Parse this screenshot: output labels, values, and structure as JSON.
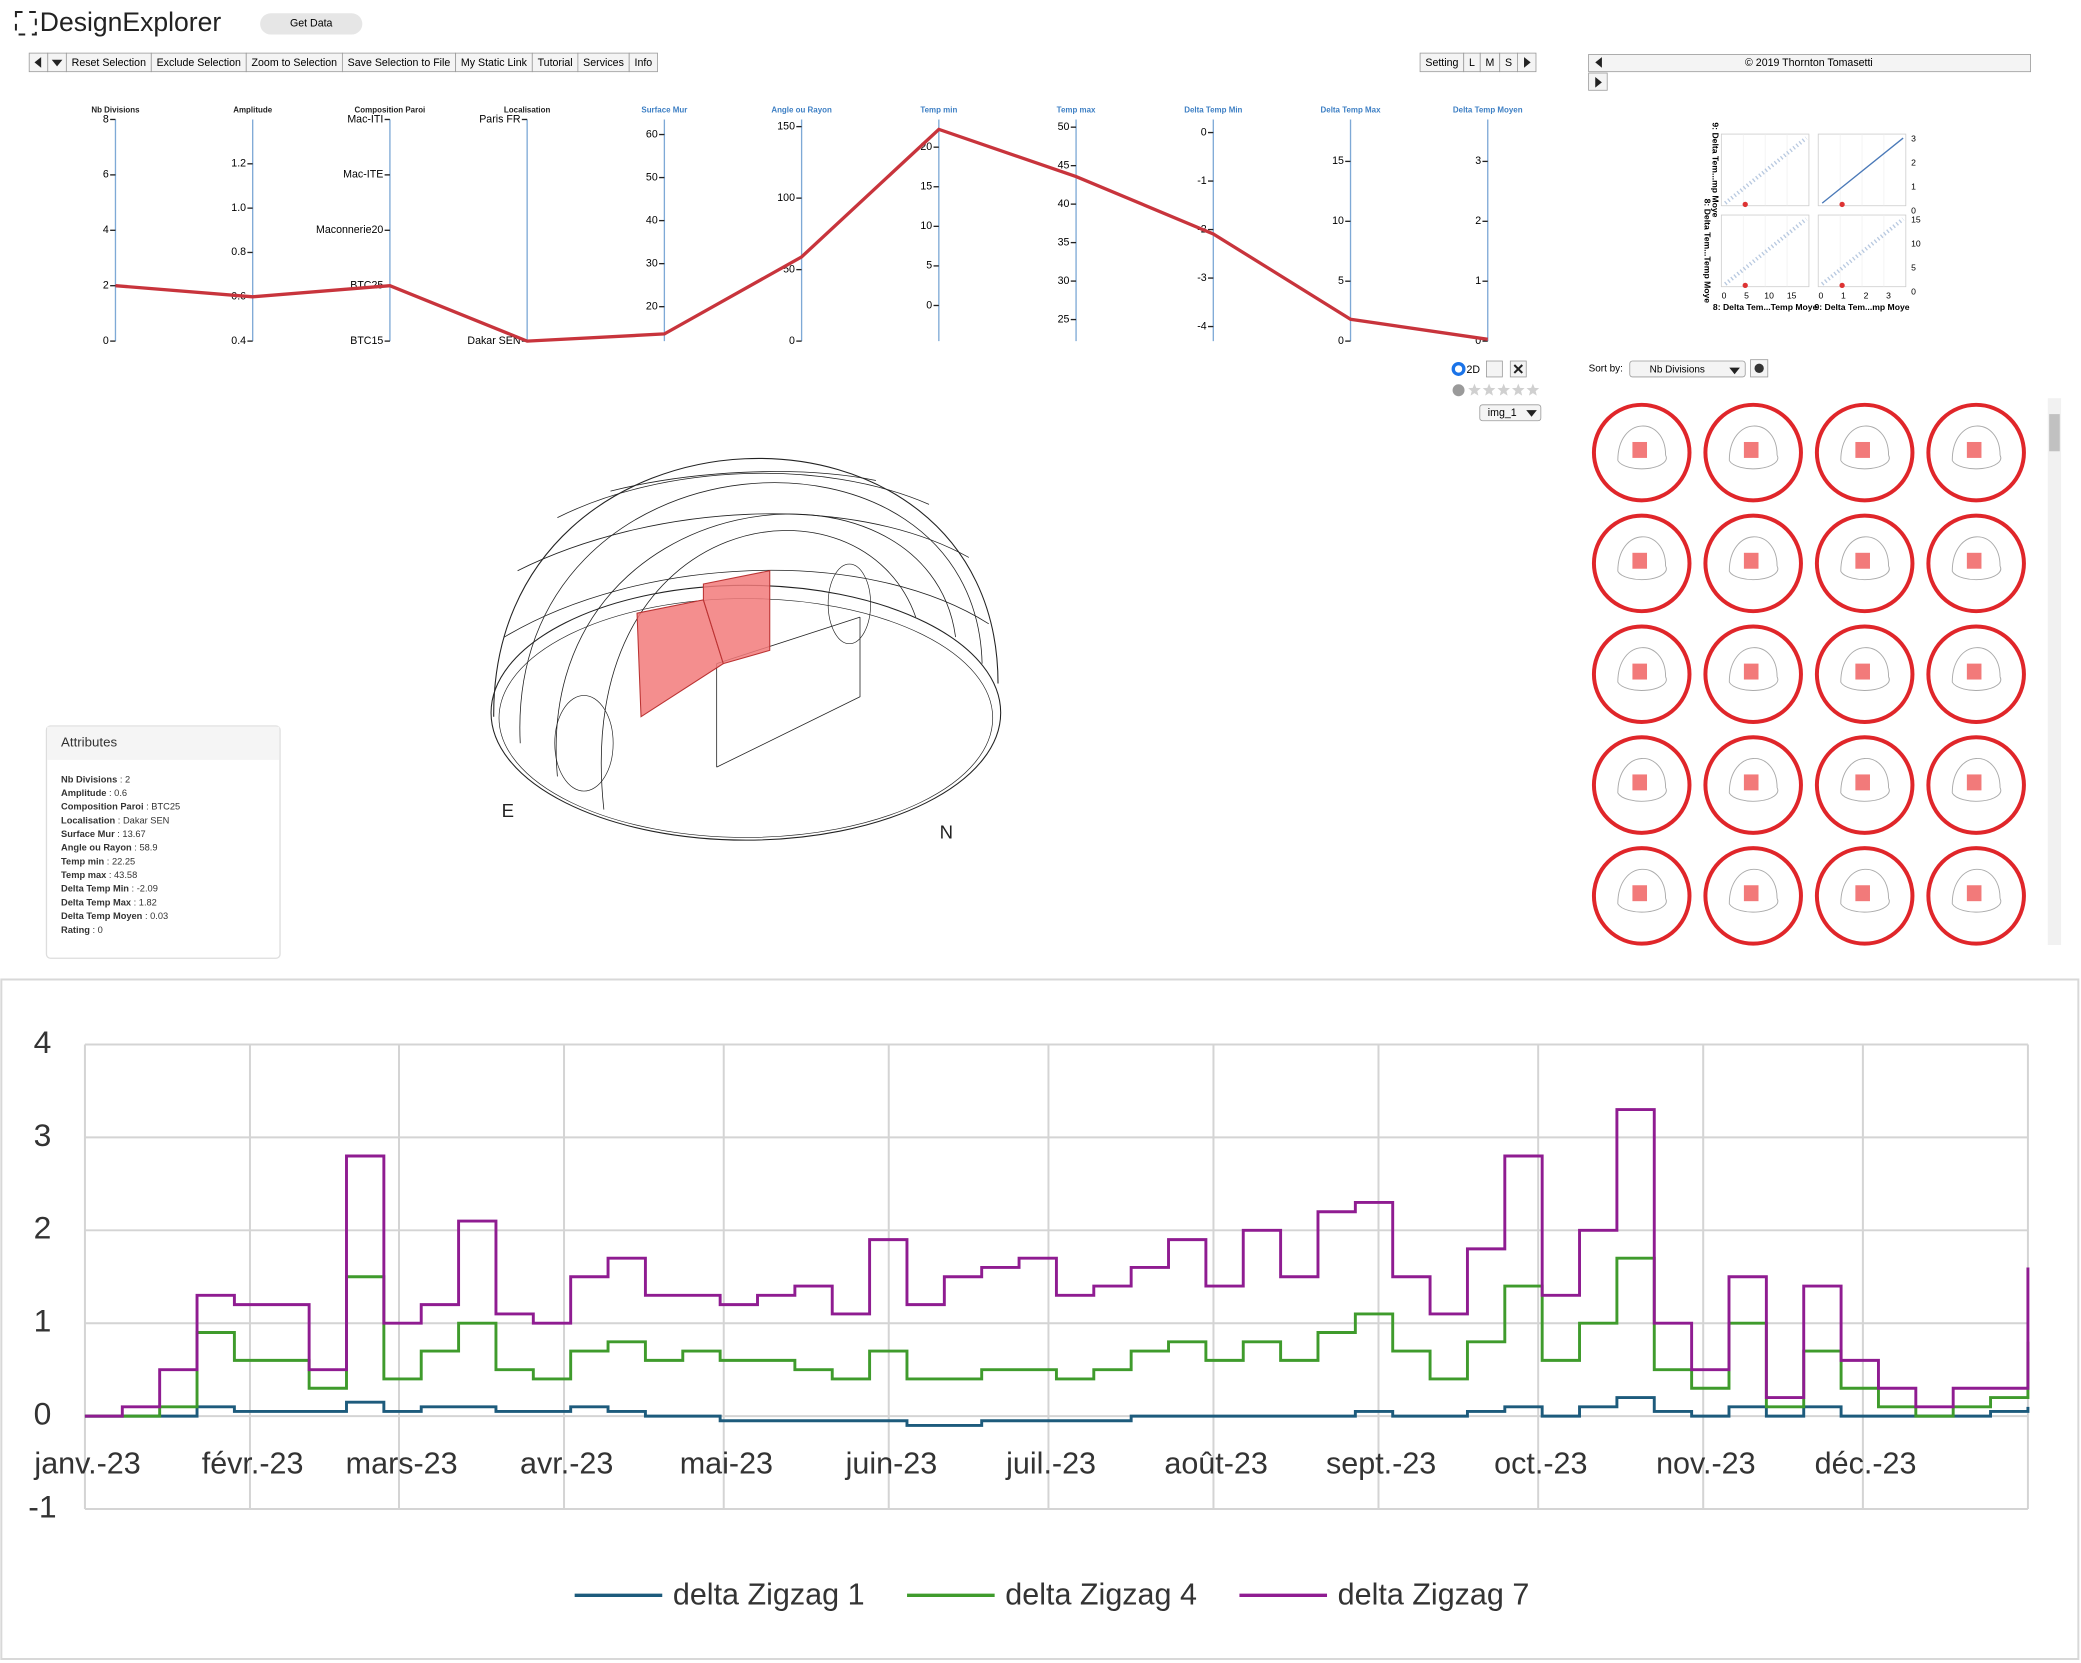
{
  "header": {
    "logo": "DesignExplorer",
    "get_data": "Get Data"
  },
  "toolbar": {
    "left": [
      "Reset Selection",
      "Exclude Selection",
      "Zoom to Selection",
      "Save Selection to File",
      "My Static Link",
      "Tutorial",
      "Services",
      "Info"
    ],
    "right": [
      "Setting",
      "L",
      "M",
      "S"
    ]
  },
  "credit": "© 2019 Thornton Tomasetti",
  "parallel": {
    "axes": [
      {
        "name": "Nb Divisions",
        "ylim": [
          0,
          8
        ],
        "ticks": [
          0,
          2,
          4,
          6,
          8
        ]
      },
      {
        "name": "Amplitude",
        "ylim": [
          0.4,
          1.4
        ],
        "ticks": [
          0.4,
          0.6,
          0.8,
          {
            "value": 1,
            "label": "1.0"
          },
          1.2
        ]
      },
      {
        "name": "Composition Paroi",
        "categories": [
          "Mac-ITI",
          "Mac-ITE",
          "Maconnerie20",
          "BTC25",
          "BTC15"
        ]
      },
      {
        "name": "Localisation",
        "categories": [
          "Paris FR",
          "Dakar SEN"
        ]
      },
      {
        "name": "Surface Mur",
        "ylim": [
          12,
          63.5
        ],
        "ticks": [
          20,
          30,
          40,
          50,
          60
        ]
      },
      {
        "name": "Angle ou Rayon",
        "ylim": [
          0,
          155
        ],
        "ticks": [
          0,
          50,
          100,
          150
        ]
      },
      {
        "name": "Temp min",
        "ylim": [
          -4.5,
          23.5
        ],
        "ticks": [
          0,
          5,
          10,
          15,
          20
        ]
      },
      {
        "name": "Temp max",
        "ylim": [
          22.2,
          51
        ],
        "ticks": [
          25,
          30,
          35,
          40,
          45,
          50
        ]
      },
      {
        "name": "Delta Temp Min",
        "ylim": [
          -4.3,
          0.27
        ],
        "ticks": [
          0,
          -1,
          -2,
          -3,
          -4
        ]
      },
      {
        "name": "Delta Temp Max",
        "ylim": [
          0,
          18.5
        ],
        "ticks": [
          0,
          5,
          10,
          15
        ]
      },
      {
        "name": "Delta Temp Moyen",
        "ylim": [
          0,
          3.7
        ],
        "ticks": [
          0,
          1,
          2,
          3
        ]
      }
    ],
    "selected_color": "#c8343c"
  },
  "view_controls": {
    "mode": "2D",
    "image": "img_1"
  },
  "attributes": {
    "title": "Attributes",
    "separator": " : ",
    "items": [
      {
        "label": "Nb Divisions",
        "value": 2
      },
      {
        "label": "Amplitude",
        "value": 0.6
      },
      {
        "label": "Composition Paroi",
        "value": "BTC25"
      },
      {
        "label": "Localisation",
        "value": "Dakar SEN"
      },
      {
        "label": "Surface Mur",
        "value": 13.67
      },
      {
        "label": "Angle ou Rayon",
        "value": 58.9
      },
      {
        "label": "Temp min",
        "value": 22.25
      },
      {
        "label": "Temp max",
        "value": 43.58
      },
      {
        "label": "Delta Temp Min",
        "value": -2.09
      },
      {
        "label": "Delta Temp Max",
        "value": 1.82
      },
      {
        "label": "Delta Temp Moyen",
        "value": 0.03
      },
      {
        "label": "Rating",
        "value": 0
      }
    ]
  },
  "sort": {
    "label": "Sort by:",
    "value": "Nb Divisions"
  },
  "scatter_matrix": {
    "x_labels": [
      "8: Delta Tem...Temp Moye",
      "9: Delta Tem...mp Moye"
    ],
    "y_labels": [
      "9: Delta Tem...mp Moye",
      "8: Delta Tem...Temp Moye"
    ],
    "xticks": [
      [
        0,
        5,
        10,
        15
      ],
      [
        0,
        1,
        2,
        3
      ]
    ],
    "yticks": [
      [
        3,
        2,
        1,
        0
      ],
      [
        15,
        10,
        5,
        0
      ]
    ]
  },
  "chart_data": {
    "type": "step",
    "x_labels": [
      "janv.-23",
      "févr.-23",
      "mars-23",
      "avr.-23",
      "mai-23",
      "juin-23",
      "juil.-23",
      "août-23",
      "sept.-23",
      "oct.-23",
      "nov.-23",
      "déc.-23"
    ],
    "ylim": [
      -1,
      4
    ],
    "yticks": [
      -1,
      0,
      1,
      2,
      3,
      4
    ],
    "grid": true,
    "legend": "bottom",
    "series": [
      {
        "name": "delta Zigzag 1",
        "color": "#1d5b7c",
        "values": [
          0,
          0,
          0,
          0.1,
          0.05,
          0.05,
          0.05,
          0.15,
          0.05,
          0.1,
          0.1,
          0.05,
          0.05,
          0.1,
          0.05,
          0,
          0,
          -0.05,
          -0.05,
          -0.05,
          -0.05,
          -0.05,
          -0.1,
          -0.1,
          -0.05,
          -0.05,
          -0.05,
          -0.05,
          0,
          0,
          0,
          0,
          0,
          0,
          0.05,
          0,
          0,
          0.05,
          0.1,
          0,
          0.1,
          0.2,
          0.05,
          0,
          0.1,
          0,
          0.1,
          0,
          0,
          0,
          0,
          0.05,
          0.1
        ]
      },
      {
        "name": "delta Zigzag 4",
        "color": "#3f9b2c",
        "values": [
          0,
          0,
          0.1,
          0.9,
          0.6,
          0.6,
          0.3,
          1.5,
          0.4,
          0.7,
          1.0,
          0.5,
          0.4,
          0.7,
          0.8,
          0.6,
          0.7,
          0.6,
          0.6,
          0.5,
          0.4,
          0.7,
          0.4,
          0.4,
          0.5,
          0.5,
          0.4,
          0.5,
          0.7,
          0.8,
          0.6,
          0.8,
          0.6,
          0.9,
          1.1,
          0.7,
          0.4,
          0.8,
          1.4,
          0.6,
          1.0,
          1.7,
          0.5,
          0.3,
          1.0,
          0.1,
          0.7,
          0.3,
          0.1,
          0,
          0.1,
          0.2,
          0.8
        ]
      },
      {
        "name": "delta Zigzag 7",
        "color": "#8f1c91",
        "values": [
          0,
          0.1,
          0.5,
          1.3,
          1.2,
          1.2,
          0.5,
          2.8,
          1.0,
          1.2,
          2.1,
          1.1,
          1.0,
          1.5,
          1.7,
          1.3,
          1.3,
          1.2,
          1.3,
          1.4,
          1.1,
          1.9,
          1.2,
          1.5,
          1.6,
          1.7,
          1.3,
          1.4,
          1.6,
          1.9,
          1.4,
          2.0,
          1.5,
          2.2,
          2.3,
          1.5,
          1.1,
          1.8,
          2.8,
          1.3,
          2.0,
          3.3,
          1.0,
          0.5,
          1.5,
          0.2,
          1.4,
          0.6,
          0.3,
          0.1,
          0.3,
          0.3,
          1.6
        ]
      }
    ]
  }
}
